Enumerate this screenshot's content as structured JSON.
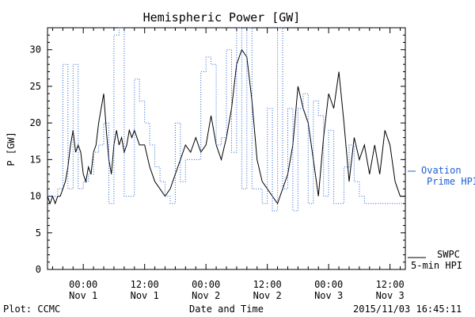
{
  "chart_data": {
    "type": "line",
    "title": "Hemispheric Power [GW]",
    "ylabel": "P [GW]",
    "xlabel": "Date and Time",
    "ylim": [
      0,
      33
    ],
    "xlim": [
      "2015-11-31 17:00",
      "2015-11-03 15:00"
    ],
    "yticks": [
      0,
      5,
      10,
      15,
      20,
      25,
      30
    ],
    "xticks": [
      {
        "time": "00:00",
        "date": "Nov 1"
      },
      {
        "time": "12:00",
        "date": "Nov 1"
      },
      {
        "time": "00:00",
        "date": "Nov 2"
      },
      {
        "time": "12:00",
        "date": "Nov 2"
      },
      {
        "time": "00:00",
        "date": "Nov 3"
      },
      {
        "time": "12:00",
        "date": "Nov 3"
      }
    ],
    "series": [
      {
        "name": "SWPC 5-min HPI",
        "style": "solid",
        "color": "#000000",
        "hours": [
          -7,
          -6.5,
          -6,
          -5.5,
          -5,
          -4.5,
          -4,
          -3.5,
          -3,
          -2.5,
          -2,
          -1.5,
          -1,
          -0.5,
          0,
          0.5,
          1,
          1.5,
          2,
          2.5,
          3,
          3.5,
          4,
          4.5,
          5,
          5.5,
          6,
          6.5,
          7,
          7.5,
          8,
          8.5,
          9,
          9.5,
          10,
          11,
          12,
          13,
          14,
          15,
          16,
          17,
          18,
          19,
          20,
          21,
          22,
          23,
          24,
          25,
          26,
          27,
          28,
          29,
          30,
          31,
          32,
          33,
          34,
          35,
          36,
          37,
          38,
          39,
          40,
          41,
          42,
          43,
          44,
          45,
          46,
          47,
          48,
          49,
          50,
          51,
          52,
          53,
          54,
          55,
          56,
          57,
          58,
          59,
          60,
          61,
          62,
          63
        ],
        "values": [
          10,
          9,
          10,
          9,
          10,
          10,
          11,
          12,
          14,
          17,
          19,
          16,
          17,
          16,
          13,
          12,
          14,
          13,
          16,
          17,
          20,
          22,
          24,
          19,
          15,
          13,
          17,
          19,
          17,
          18,
          16,
          17,
          19,
          18,
          19,
          17,
          17,
          14,
          12,
          11,
          10,
          11,
          13,
          15,
          17,
          16,
          18,
          16,
          17,
          21,
          17,
          15,
          18,
          22,
          28,
          30,
          29,
          23,
          15,
          12,
          11,
          10,
          9,
          11,
          13,
          17,
          25,
          22,
          20,
          15,
          10,
          18,
          24,
          22,
          27,
          20,
          12,
          18,
          15,
          17,
          13,
          17,
          13,
          19,
          17,
          12,
          10,
          10
        ]
      },
      {
        "name": "Ovation Prime HPI",
        "style": "dotted",
        "color": "#1f5fd0",
        "hours": [
          -7,
          -5,
          -4,
          -3,
          -2,
          -1,
          0,
          1,
          2,
          3,
          4,
          5,
          6,
          7,
          8,
          9,
          10,
          11,
          12,
          13,
          14,
          15,
          16,
          17,
          18,
          19,
          20,
          21,
          22,
          23,
          24,
          25,
          26,
          27,
          28,
          29,
          30,
          31,
          32,
          33,
          34,
          35,
          36,
          37,
          38,
          39,
          40,
          41,
          42,
          43,
          44,
          45,
          46,
          47,
          48,
          49,
          50,
          51,
          52,
          53,
          54,
          55,
          56,
          57,
          58,
          59,
          60,
          61,
          62,
          63
        ],
        "values": [
          10,
          11,
          28,
          11,
          28,
          11,
          12,
          13,
          16,
          17,
          20,
          9,
          32,
          33,
          10,
          10,
          26,
          23,
          20,
          17,
          14,
          12,
          10,
          9,
          20,
          12,
          15,
          15,
          15,
          27,
          29,
          28,
          17,
          18,
          30,
          16,
          33,
          11,
          33,
          11,
          11,
          9,
          22,
          8,
          33,
          11,
          22,
          8,
          22,
          24,
          9,
          23,
          21,
          10,
          19,
          9,
          9,
          14,
          17,
          12,
          10,
          9,
          9,
          9,
          9,
          9,
          9,
          9,
          9,
          9
        ]
      }
    ],
    "legend": {
      "swpc_line1": "SWPC",
      "swpc_line2": "5-min HPI",
      "ovation_line1": "Ovation",
      "ovation_line2": "Prime HPI"
    },
    "legend_position": "right",
    "grid": false
  },
  "footer": {
    "left": "Plot: CCMC",
    "right": "2015/11/03 16:45:11"
  }
}
